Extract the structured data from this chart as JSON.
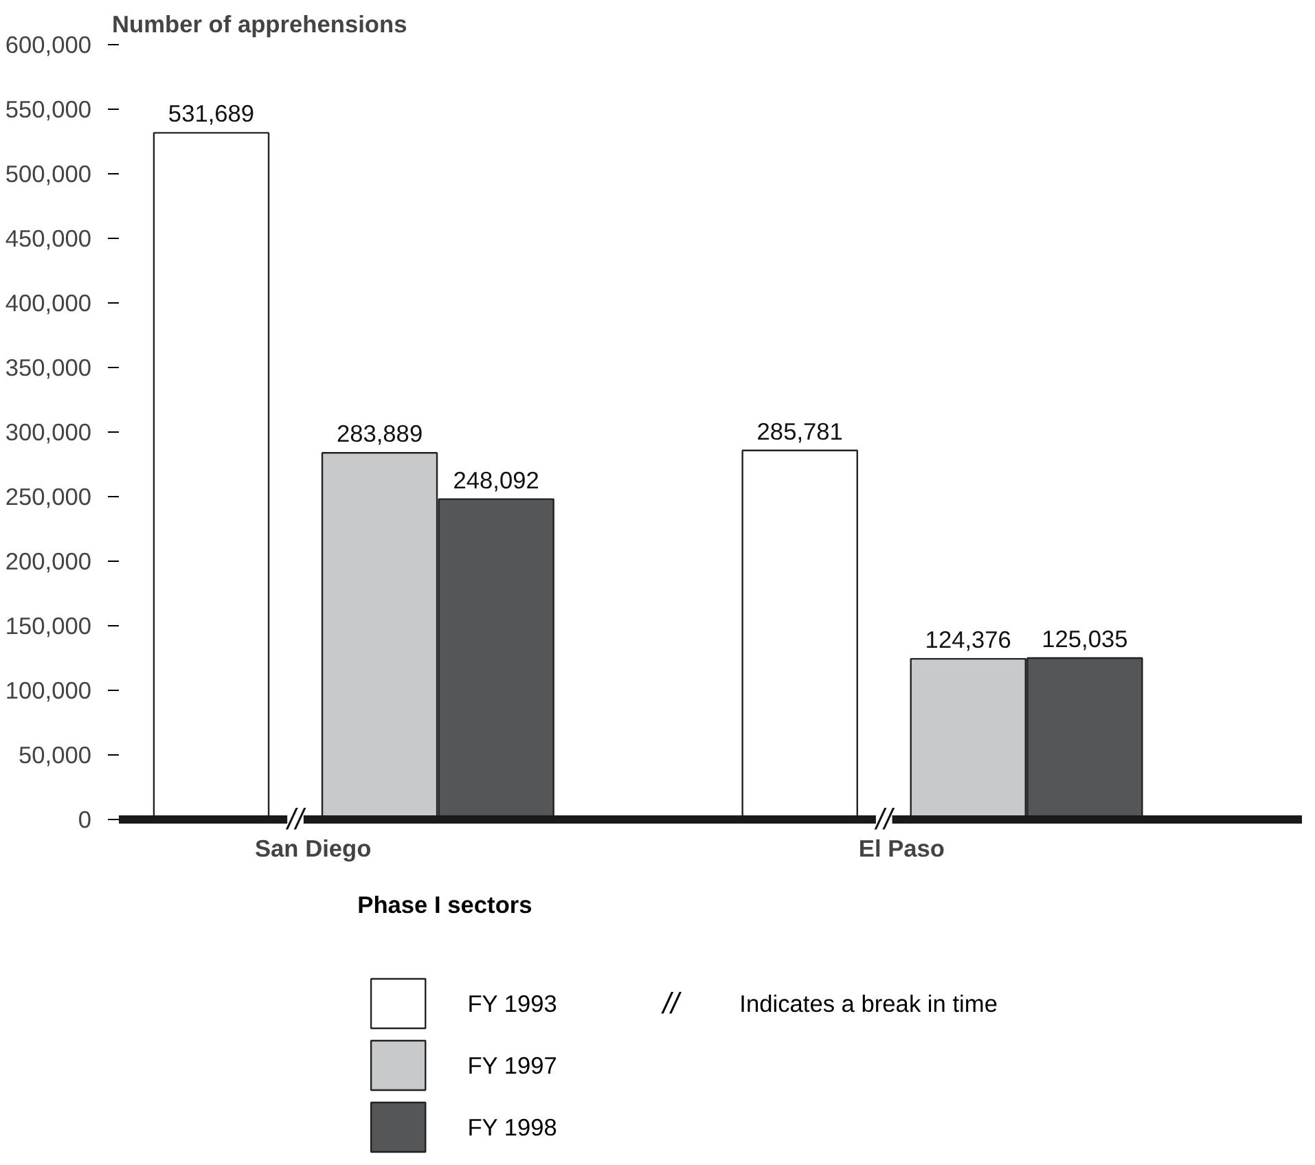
{
  "chart_data": {
    "type": "bar",
    "ylabel": "Number of apprehensions",
    "xlabel": "Phase I sectors",
    "categories": [
      "San Diego",
      "El Paso"
    ],
    "series": [
      {
        "name": "FY 1993",
        "color": "#ffffff",
        "values": [
          531689,
          285781
        ],
        "value_labels": [
          "531,689",
          "285,781"
        ]
      },
      {
        "name": "FY 1997",
        "color": "#c8c9cb",
        "values": [
          283889,
          124376
        ],
        "value_labels": [
          "283,889",
          "124,376"
        ]
      },
      {
        "name": "FY 1998",
        "color": "#545658",
        "values": [
          248092,
          125035
        ],
        "value_labels": [
          "248,092",
          "125,035"
        ]
      }
    ],
    "ylim": [
      0,
      600000
    ],
    "yticks": [
      {
        "value": 0,
        "label": "0"
      },
      {
        "value": 50000,
        "label": "50,000"
      },
      {
        "value": 100000,
        "label": "100,000"
      },
      {
        "value": 150000,
        "label": "150,000"
      },
      {
        "value": 200000,
        "label": "200,000"
      },
      {
        "value": 250000,
        "label": "250,000"
      },
      {
        "value": 300000,
        "label": "300,000"
      },
      {
        "value": 350000,
        "label": "350,000"
      },
      {
        "value": 400000,
        "label": "400,000"
      },
      {
        "value": 450000,
        "label": "450,000"
      },
      {
        "value": 500000,
        "label": "500,000"
      },
      {
        "value": 550000,
        "label": "550,000"
      },
      {
        "value": 600000,
        "label": "600,000"
      }
    ],
    "grid": false,
    "legend": "bottom",
    "annotations": [
      "//",
      "//",
      "//",
      "Indicates a break in time"
    ]
  }
}
